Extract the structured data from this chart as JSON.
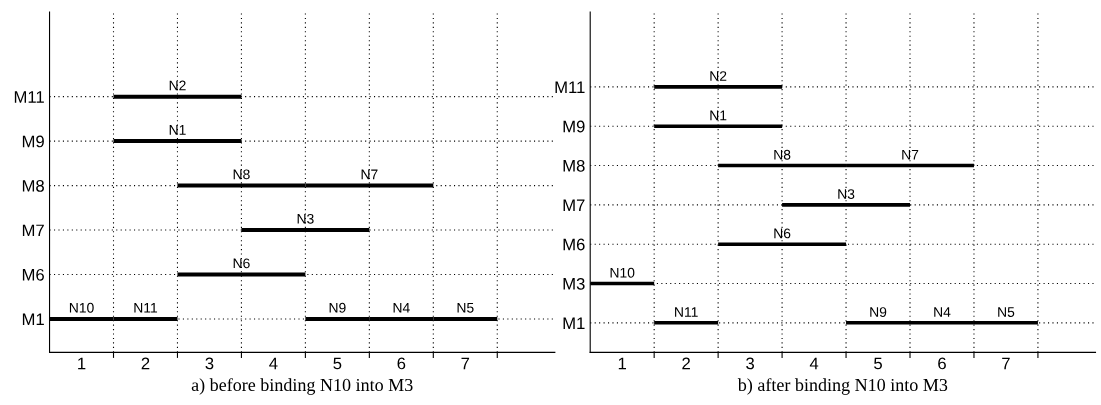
{
  "chart_data": [
    {
      "type": "bar",
      "orientation": "horizontal",
      "xlabel": "a) before binding N10 into M3",
      "categories": [
        "M11",
        "M9",
        "M8",
        "M7",
        "M6",
        "M1"
      ],
      "xlim": [
        0.5,
        8.4
      ],
      "xticks": [
        {
          "value": 1,
          "label": "1"
        },
        {
          "value": 1.5,
          "label": null
        },
        {
          "value": 2,
          "label": "2"
        },
        {
          "value": 2.5,
          "label": null
        },
        {
          "value": 3,
          "label": "3"
        },
        {
          "value": 3.5,
          "label": null
        },
        {
          "value": 4,
          "label": "4"
        },
        {
          "value": 4.5,
          "label": null
        },
        {
          "value": 5,
          "label": "5"
        },
        {
          "value": 5.5,
          "label": null
        },
        {
          "value": 6,
          "label": "6"
        },
        {
          "value": 6.5,
          "label": null
        },
        {
          "value": 7,
          "label": "7"
        },
        {
          "value": 7.5,
          "label": null
        }
      ],
      "grid": true,
      "legend": false,
      "series": [
        {
          "name": "N2",
          "color": "#000000",
          "base": [
            1.5,
            null,
            null,
            null,
            null,
            null
          ],
          "values": [
            2,
            null,
            null,
            null,
            null,
            null
          ]
        },
        {
          "name": "N1",
          "color": "#000000",
          "base": [
            null,
            1.5,
            null,
            null,
            null,
            null
          ],
          "values": [
            null,
            2,
            null,
            null,
            null,
            null
          ]
        },
        {
          "name": "N8",
          "color": "#000000",
          "base": [
            null,
            null,
            2.5,
            null,
            null,
            null
          ],
          "values": [
            null,
            null,
            2,
            null,
            null,
            null
          ]
        },
        {
          "name": "N7",
          "color": "#000000",
          "base": [
            null,
            null,
            4.5,
            null,
            null,
            null
          ],
          "values": [
            null,
            null,
            2,
            null,
            null,
            null
          ]
        },
        {
          "name": "N3",
          "color": "#000000",
          "base": [
            null,
            null,
            null,
            3.5,
            null,
            null
          ],
          "values": [
            null,
            null,
            null,
            2,
            null,
            null
          ]
        },
        {
          "name": "N6",
          "color": "#000000",
          "base": [
            null,
            null,
            null,
            null,
            2.5,
            null
          ],
          "values": [
            null,
            null,
            null,
            null,
            2,
            null
          ]
        },
        {
          "name": "N10",
          "color": "#000000",
          "base": [
            null,
            null,
            null,
            null,
            null,
            0.5
          ],
          "values": [
            null,
            null,
            null,
            null,
            null,
            1
          ]
        },
        {
          "name": "N11",
          "color": "#000000",
          "base": [
            null,
            null,
            null,
            null,
            null,
            1.5
          ],
          "values": [
            null,
            null,
            null,
            null,
            null,
            1
          ]
        },
        {
          "name": "N9",
          "color": "#000000",
          "base": [
            null,
            null,
            null,
            null,
            null,
            4.5
          ],
          "values": [
            null,
            null,
            null,
            null,
            null,
            1
          ]
        },
        {
          "name": "N4",
          "color": "#000000",
          "base": [
            null,
            null,
            null,
            null,
            null,
            5.5
          ],
          "values": [
            null,
            null,
            null,
            null,
            null,
            1
          ]
        },
        {
          "name": "N5",
          "color": "#000000",
          "base": [
            null,
            null,
            null,
            null,
            null,
            6.5
          ],
          "values": [
            null,
            null,
            null,
            null,
            null,
            1
          ]
        }
      ]
    },
    {
      "type": "bar",
      "orientation": "horizontal",
      "xlabel": "b) after binding N10 into M3",
      "categories": [
        "M11",
        "M9",
        "M8",
        "M7",
        "M6",
        "M3",
        "M1"
      ],
      "xlim": [
        0.5,
        8.4
      ],
      "xticks": [
        {
          "value": 1,
          "label": "1"
        },
        {
          "value": 1.5,
          "label": null
        },
        {
          "value": 2,
          "label": "2"
        },
        {
          "value": 2.5,
          "label": null
        },
        {
          "value": 3,
          "label": "3"
        },
        {
          "value": 3.5,
          "label": null
        },
        {
          "value": 4,
          "label": "4"
        },
        {
          "value": 4.5,
          "label": null
        },
        {
          "value": 5,
          "label": "5"
        },
        {
          "value": 5.5,
          "label": null
        },
        {
          "value": 6,
          "label": "6"
        },
        {
          "value": 6.5,
          "label": null
        },
        {
          "value": 7,
          "label": "7"
        },
        {
          "value": 7.5,
          "label": null
        }
      ],
      "grid": true,
      "legend": false,
      "series": [
        {
          "name": "N2",
          "color": "#000000",
          "base": [
            1.5,
            null,
            null,
            null,
            null,
            null,
            null
          ],
          "values": [
            2,
            null,
            null,
            null,
            null,
            null,
            null
          ]
        },
        {
          "name": "N1",
          "color": "#000000",
          "base": [
            null,
            1.5,
            null,
            null,
            null,
            null,
            null
          ],
          "values": [
            null,
            2,
            null,
            null,
            null,
            null,
            null
          ]
        },
        {
          "name": "N8",
          "color": "#000000",
          "base": [
            null,
            null,
            2.5,
            null,
            null,
            null,
            null
          ],
          "values": [
            null,
            null,
            2,
            null,
            null,
            null,
            null
          ]
        },
        {
          "name": "N7",
          "color": "#000000",
          "base": [
            null,
            null,
            4.5,
            null,
            null,
            null,
            null
          ],
          "values": [
            null,
            null,
            2,
            null,
            null,
            null,
            null
          ]
        },
        {
          "name": "N3",
          "color": "#000000",
          "base": [
            null,
            null,
            null,
            3.5,
            null,
            null,
            null
          ],
          "values": [
            null,
            null,
            null,
            2,
            null,
            null,
            null
          ]
        },
        {
          "name": "N6",
          "color": "#000000",
          "base": [
            null,
            null,
            null,
            null,
            2.5,
            null,
            null
          ],
          "values": [
            null,
            null,
            null,
            null,
            2,
            null,
            null
          ]
        },
        {
          "name": "N10",
          "color": "#000000",
          "base": [
            null,
            null,
            null,
            null,
            null,
            0.5,
            null
          ],
          "values": [
            null,
            null,
            null,
            null,
            null,
            1,
            null
          ]
        },
        {
          "name": "N11",
          "color": "#000000",
          "base": [
            null,
            null,
            null,
            null,
            null,
            null,
            1.5
          ],
          "values": [
            null,
            null,
            null,
            null,
            null,
            null,
            1
          ]
        },
        {
          "name": "N9",
          "color": "#000000",
          "base": [
            null,
            null,
            null,
            null,
            null,
            null,
            4.5
          ],
          "values": [
            null,
            null,
            null,
            null,
            null,
            null,
            1
          ]
        },
        {
          "name": "N4",
          "color": "#000000",
          "base": [
            null,
            null,
            null,
            null,
            null,
            null,
            5.5
          ],
          "values": [
            null,
            null,
            null,
            null,
            null,
            null,
            1
          ]
        },
        {
          "name": "N5",
          "color": "#000000",
          "base": [
            null,
            null,
            null,
            null,
            null,
            null,
            6.5
          ],
          "values": [
            null,
            null,
            null,
            null,
            null,
            null,
            1
          ]
        }
      ]
    }
  ]
}
